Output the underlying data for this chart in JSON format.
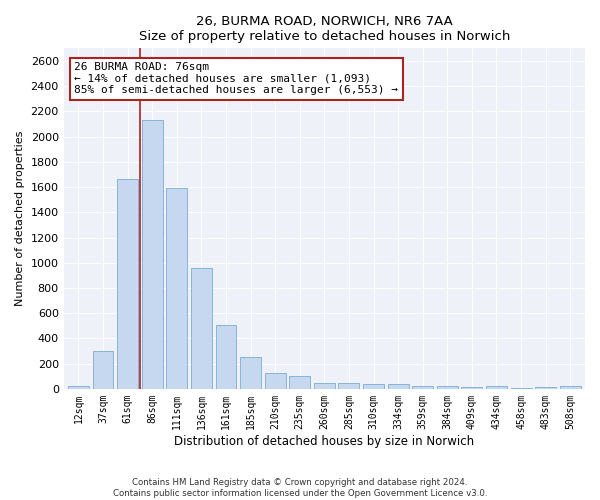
{
  "title1": "26, BURMA ROAD, NORWICH, NR6 7AA",
  "title2": "Size of property relative to detached houses in Norwich",
  "xlabel": "Distribution of detached houses by size in Norwich",
  "ylabel": "Number of detached properties",
  "categories": [
    "12sqm",
    "37sqm",
    "61sqm",
    "86sqm",
    "111sqm",
    "136sqm",
    "161sqm",
    "185sqm",
    "210sqm",
    "235sqm",
    "260sqm",
    "285sqm",
    "310sqm",
    "334sqm",
    "359sqm",
    "384sqm",
    "409sqm",
    "434sqm",
    "458sqm",
    "483sqm",
    "508sqm"
  ],
  "values": [
    25,
    300,
    1660,
    2130,
    1590,
    960,
    505,
    250,
    125,
    100,
    50,
    50,
    35,
    35,
    20,
    25,
    15,
    20,
    5,
    15,
    25
  ],
  "bar_color": "#c5d8f0",
  "bar_edge_color": "#7aadd4",
  "vline_color": "#aa2222",
  "annotation_text": "26 BURMA ROAD: 76sqm\n← 14% of detached houses are smaller (1,093)\n85% of semi-detached houses are larger (6,553) →",
  "annotation_box_color": "white",
  "annotation_box_edge": "#aa2222",
  "ylim": [
    0,
    2700
  ],
  "yticks": [
    0,
    200,
    400,
    600,
    800,
    1000,
    1200,
    1400,
    1600,
    1800,
    2000,
    2200,
    2400,
    2600
  ],
  "footnote1": "Contains HM Land Registry data © Crown copyright and database right 2024.",
  "footnote2": "Contains public sector information licensed under the Open Government Licence v3.0.",
  "bg_color": "#ffffff",
  "plot_bg_color": "#eef2f8"
}
